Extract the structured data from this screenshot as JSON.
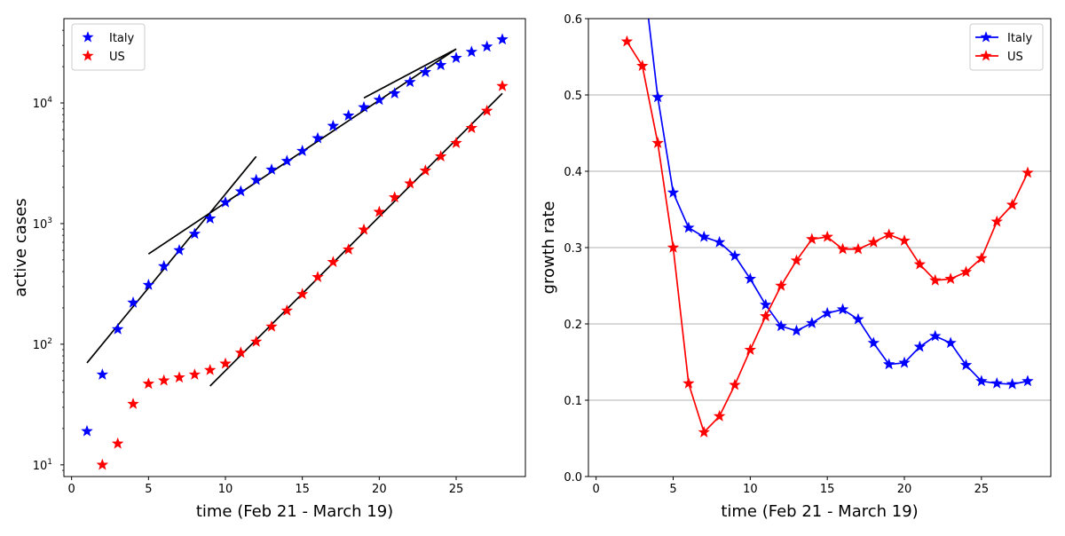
{
  "chart_data": [
    {
      "type": "scatter",
      "xlabel": "time (Feb 21 - March 19)",
      "ylabel": "active cases",
      "yscale": "log",
      "xlim": [
        -0.5,
        29.5
      ],
      "ylim": [
        8,
        50000
      ],
      "xticks": [
        0,
        5,
        10,
        15,
        20,
        25
      ],
      "yticks": [
        10,
        100,
        1000,
        10000
      ],
      "ytick_labels": [
        "10¹",
        "10²",
        "10³",
        "10⁴"
      ],
      "grid": false,
      "legend": "top-left",
      "series": [
        {
          "name": "Italy",
          "color": "#0000ff",
          "marker": "star",
          "x": [
            1,
            2,
            3,
            4,
            5,
            6,
            7,
            8,
            9,
            10,
            11,
            12,
            13,
            14,
            15,
            16,
            17,
            18,
            19,
            20,
            21,
            22,
            23,
            24,
            25,
            26,
            27,
            28
          ],
          "y": [
            19,
            56,
            133,
            221,
            310,
            443,
            601,
            822,
            1100,
            1500,
            1850,
            2300,
            2800,
            3300,
            4000,
            5100,
            6450,
            7850,
            9200,
            10600,
            12000,
            14900,
            18000,
            20600,
            23600,
            26500,
            29300,
            33600
          ]
        },
        {
          "name": "US",
          "color": "#ff0000",
          "marker": "star",
          "x": [
            2,
            3,
            4,
            5,
            6,
            7,
            8,
            9,
            10,
            11,
            12,
            13,
            14,
            15,
            16,
            17,
            18,
            19,
            20,
            21,
            22,
            23,
            24,
            25,
            26,
            27,
            28
          ],
          "y": [
            10,
            15,
            32,
            47,
            50,
            53,
            56,
            61,
            69,
            85,
            105,
            140,
            190,
            260,
            360,
            480,
            610,
            890,
            1250,
            1650,
            2150,
            2750,
            3600,
            4650,
            6200,
            8600,
            13800
          ]
        }
      ],
      "fit_lines": [
        {
          "color": "#000000",
          "x": [
            1,
            12
          ],
          "y": [
            70,
            3600
          ]
        },
        {
          "color": "#000000",
          "x": [
            5,
            25
          ],
          "y": [
            560,
            28000
          ]
        },
        {
          "color": "#000000",
          "x": [
            19,
            25
          ],
          "y": [
            11000,
            28000
          ]
        },
        {
          "color": "#000000",
          "x": [
            9,
            28
          ],
          "y": [
            45,
            12000
          ]
        }
      ]
    },
    {
      "type": "line",
      "xlabel": "time (Feb 21 - March 19)",
      "ylabel": "growth rate",
      "xlim": [
        -0.5,
        29.5
      ],
      "ylim": [
        0.0,
        0.6
      ],
      "xticks": [
        0,
        5,
        10,
        15,
        20,
        25
      ],
      "yticks": [
        0.0,
        0.1,
        0.2,
        0.3,
        0.4,
        0.5,
        0.6
      ],
      "ytick_labels": [
        "0.0",
        "0.1",
        "0.2",
        "0.3",
        "0.4",
        "0.5",
        "0.6"
      ],
      "grid": "horizontal",
      "legend": "top-right",
      "series": [
        {
          "name": "Italy",
          "color": "#0000ff",
          "marker": "star",
          "line_x": [
            3.4,
            4,
            5,
            6,
            7,
            8,
            9,
            10,
            11,
            12,
            13,
            14,
            15,
            16,
            17,
            18,
            19,
            20,
            21,
            22,
            23,
            24,
            25,
            26,
            27,
            28
          ],
          "line_y": [
            0.6,
            0.497,
            0.372,
            0.326,
            0.314,
            0.307,
            0.289,
            0.259,
            0.225,
            0.197,
            0.191,
            0.201,
            0.214,
            0.219,
            0.206,
            0.175,
            0.147,
            0.149,
            0.17,
            0.184,
            0.175,
            0.146,
            0.125,
            0.122,
            0.121,
            0.125
          ],
          "x": [
            4,
            5,
            6,
            7,
            8,
            9,
            10,
            11,
            12,
            13,
            14,
            15,
            16,
            17,
            18,
            19,
            20,
            21,
            22,
            23,
            24,
            25,
            26,
            27,
            28
          ],
          "y": [
            0.497,
            0.372,
            0.326,
            0.314,
            0.307,
            0.289,
            0.259,
            0.225,
            0.197,
            0.191,
            0.201,
            0.214,
            0.219,
            0.206,
            0.175,
            0.147,
            0.149,
            0.17,
            0.184,
            0.175,
            0.146,
            0.125,
            0.122,
            0.121,
            0.125
          ]
        },
        {
          "name": "US",
          "color": "#ff0000",
          "marker": "star",
          "line_x": [
            2,
            3,
            4,
            5,
            6,
            7,
            8,
            9,
            10,
            11,
            12,
            13,
            14,
            15,
            16,
            17,
            18,
            19,
            20,
            21,
            22,
            23,
            24,
            25,
            26,
            27,
            28
          ],
          "line_y": [
            0.57,
            0.538,
            0.437,
            0.3,
            0.122,
            0.058,
            0.079,
            0.12,
            0.166,
            0.21,
            0.25,
            0.283,
            0.311,
            0.314,
            0.298,
            0.298,
            0.307,
            0.317,
            0.309,
            0.278,
            0.257,
            0.259,
            0.268,
            0.286,
            0.334,
            0.356,
            0.398
          ],
          "x": [
            2,
            3,
            4,
            5,
            6,
            7,
            8,
            9,
            10,
            11,
            12,
            13,
            14,
            15,
            16,
            17,
            18,
            19,
            20,
            21,
            22,
            23,
            24,
            25,
            26,
            27,
            28
          ],
          "y": [
            0.57,
            0.538,
            0.437,
            0.3,
            0.122,
            0.058,
            0.079,
            0.12,
            0.166,
            0.21,
            0.25,
            0.283,
            0.311,
            0.314,
            0.298,
            0.298,
            0.307,
            0.317,
            0.309,
            0.278,
            0.257,
            0.259,
            0.268,
            0.286,
            0.334,
            0.356,
            0.398
          ]
        }
      ]
    }
  ]
}
